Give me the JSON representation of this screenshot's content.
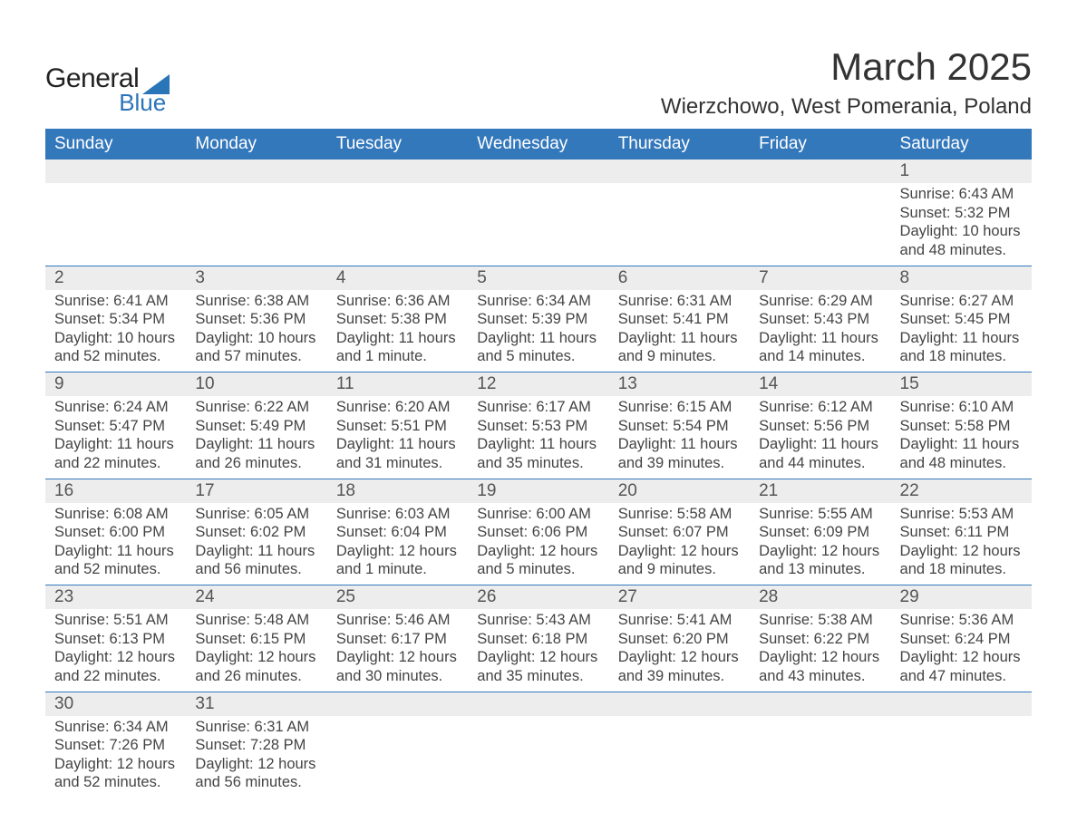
{
  "logo": {
    "line1": "General",
    "line2": "Blue",
    "brand_color": "#2a74b8"
  },
  "header": {
    "title": "March 2025",
    "location": "Wierzchowo, West Pomerania, Poland"
  },
  "calendar": {
    "type": "table",
    "header_bg": "#3478bc",
    "header_text_color": "#ffffff",
    "daynum_bg": "#ededed",
    "row_border_color": "#3478bc",
    "text_color": "#444444",
    "fontsize_body": 16.5,
    "fontsize_header": 19,
    "days_of_week": [
      "Sunday",
      "Monday",
      "Tuesday",
      "Wednesday",
      "Thursday",
      "Friday",
      "Saturday"
    ],
    "weeks": [
      [
        null,
        null,
        null,
        null,
        null,
        null,
        {
          "n": "1",
          "sunrise": "Sunrise: 6:43 AM",
          "sunset": "Sunset: 5:32 PM",
          "dl1": "Daylight: 10 hours",
          "dl2": "and 48 minutes."
        }
      ],
      [
        {
          "n": "2",
          "sunrise": "Sunrise: 6:41 AM",
          "sunset": "Sunset: 5:34 PM",
          "dl1": "Daylight: 10 hours",
          "dl2": "and 52 minutes."
        },
        {
          "n": "3",
          "sunrise": "Sunrise: 6:38 AM",
          "sunset": "Sunset: 5:36 PM",
          "dl1": "Daylight: 10 hours",
          "dl2": "and 57 minutes."
        },
        {
          "n": "4",
          "sunrise": "Sunrise: 6:36 AM",
          "sunset": "Sunset: 5:38 PM",
          "dl1": "Daylight: 11 hours",
          "dl2": "and 1 minute."
        },
        {
          "n": "5",
          "sunrise": "Sunrise: 6:34 AM",
          "sunset": "Sunset: 5:39 PM",
          "dl1": "Daylight: 11 hours",
          "dl2": "and 5 minutes."
        },
        {
          "n": "6",
          "sunrise": "Sunrise: 6:31 AM",
          "sunset": "Sunset: 5:41 PM",
          "dl1": "Daylight: 11 hours",
          "dl2": "and 9 minutes."
        },
        {
          "n": "7",
          "sunrise": "Sunrise: 6:29 AM",
          "sunset": "Sunset: 5:43 PM",
          "dl1": "Daylight: 11 hours",
          "dl2": "and 14 minutes."
        },
        {
          "n": "8",
          "sunrise": "Sunrise: 6:27 AM",
          "sunset": "Sunset: 5:45 PM",
          "dl1": "Daylight: 11 hours",
          "dl2": "and 18 minutes."
        }
      ],
      [
        {
          "n": "9",
          "sunrise": "Sunrise: 6:24 AM",
          "sunset": "Sunset: 5:47 PM",
          "dl1": "Daylight: 11 hours",
          "dl2": "and 22 minutes."
        },
        {
          "n": "10",
          "sunrise": "Sunrise: 6:22 AM",
          "sunset": "Sunset: 5:49 PM",
          "dl1": "Daylight: 11 hours",
          "dl2": "and 26 minutes."
        },
        {
          "n": "11",
          "sunrise": "Sunrise: 6:20 AM",
          "sunset": "Sunset: 5:51 PM",
          "dl1": "Daylight: 11 hours",
          "dl2": "and 31 minutes."
        },
        {
          "n": "12",
          "sunrise": "Sunrise: 6:17 AM",
          "sunset": "Sunset: 5:53 PM",
          "dl1": "Daylight: 11 hours",
          "dl2": "and 35 minutes."
        },
        {
          "n": "13",
          "sunrise": "Sunrise: 6:15 AM",
          "sunset": "Sunset: 5:54 PM",
          "dl1": "Daylight: 11 hours",
          "dl2": "and 39 minutes."
        },
        {
          "n": "14",
          "sunrise": "Sunrise: 6:12 AM",
          "sunset": "Sunset: 5:56 PM",
          "dl1": "Daylight: 11 hours",
          "dl2": "and 44 minutes."
        },
        {
          "n": "15",
          "sunrise": "Sunrise: 6:10 AM",
          "sunset": "Sunset: 5:58 PM",
          "dl1": "Daylight: 11 hours",
          "dl2": "and 48 minutes."
        }
      ],
      [
        {
          "n": "16",
          "sunrise": "Sunrise: 6:08 AM",
          "sunset": "Sunset: 6:00 PM",
          "dl1": "Daylight: 11 hours",
          "dl2": "and 52 minutes."
        },
        {
          "n": "17",
          "sunrise": "Sunrise: 6:05 AM",
          "sunset": "Sunset: 6:02 PM",
          "dl1": "Daylight: 11 hours",
          "dl2": "and 56 minutes."
        },
        {
          "n": "18",
          "sunrise": "Sunrise: 6:03 AM",
          "sunset": "Sunset: 6:04 PM",
          "dl1": "Daylight: 12 hours",
          "dl2": "and 1 minute."
        },
        {
          "n": "19",
          "sunrise": "Sunrise: 6:00 AM",
          "sunset": "Sunset: 6:06 PM",
          "dl1": "Daylight: 12 hours",
          "dl2": "and 5 minutes."
        },
        {
          "n": "20",
          "sunrise": "Sunrise: 5:58 AM",
          "sunset": "Sunset: 6:07 PM",
          "dl1": "Daylight: 12 hours",
          "dl2": "and 9 minutes."
        },
        {
          "n": "21",
          "sunrise": "Sunrise: 5:55 AM",
          "sunset": "Sunset: 6:09 PM",
          "dl1": "Daylight: 12 hours",
          "dl2": "and 13 minutes."
        },
        {
          "n": "22",
          "sunrise": "Sunrise: 5:53 AM",
          "sunset": "Sunset: 6:11 PM",
          "dl1": "Daylight: 12 hours",
          "dl2": "and 18 minutes."
        }
      ],
      [
        {
          "n": "23",
          "sunrise": "Sunrise: 5:51 AM",
          "sunset": "Sunset: 6:13 PM",
          "dl1": "Daylight: 12 hours",
          "dl2": "and 22 minutes."
        },
        {
          "n": "24",
          "sunrise": "Sunrise: 5:48 AM",
          "sunset": "Sunset: 6:15 PM",
          "dl1": "Daylight: 12 hours",
          "dl2": "and 26 minutes."
        },
        {
          "n": "25",
          "sunrise": "Sunrise: 5:46 AM",
          "sunset": "Sunset: 6:17 PM",
          "dl1": "Daylight: 12 hours",
          "dl2": "and 30 minutes."
        },
        {
          "n": "26",
          "sunrise": "Sunrise: 5:43 AM",
          "sunset": "Sunset: 6:18 PM",
          "dl1": "Daylight: 12 hours",
          "dl2": "and 35 minutes."
        },
        {
          "n": "27",
          "sunrise": "Sunrise: 5:41 AM",
          "sunset": "Sunset: 6:20 PM",
          "dl1": "Daylight: 12 hours",
          "dl2": "and 39 minutes."
        },
        {
          "n": "28",
          "sunrise": "Sunrise: 5:38 AM",
          "sunset": "Sunset: 6:22 PM",
          "dl1": "Daylight: 12 hours",
          "dl2": "and 43 minutes."
        },
        {
          "n": "29",
          "sunrise": "Sunrise: 5:36 AM",
          "sunset": "Sunset: 6:24 PM",
          "dl1": "Daylight: 12 hours",
          "dl2": "and 47 minutes."
        }
      ],
      [
        {
          "n": "30",
          "sunrise": "Sunrise: 6:34 AM",
          "sunset": "Sunset: 7:26 PM",
          "dl1": "Daylight: 12 hours",
          "dl2": "and 52 minutes."
        },
        {
          "n": "31",
          "sunrise": "Sunrise: 6:31 AM",
          "sunset": "Sunset: 7:28 PM",
          "dl1": "Daylight: 12 hours",
          "dl2": "and 56 minutes."
        },
        null,
        null,
        null,
        null,
        null
      ]
    ]
  }
}
